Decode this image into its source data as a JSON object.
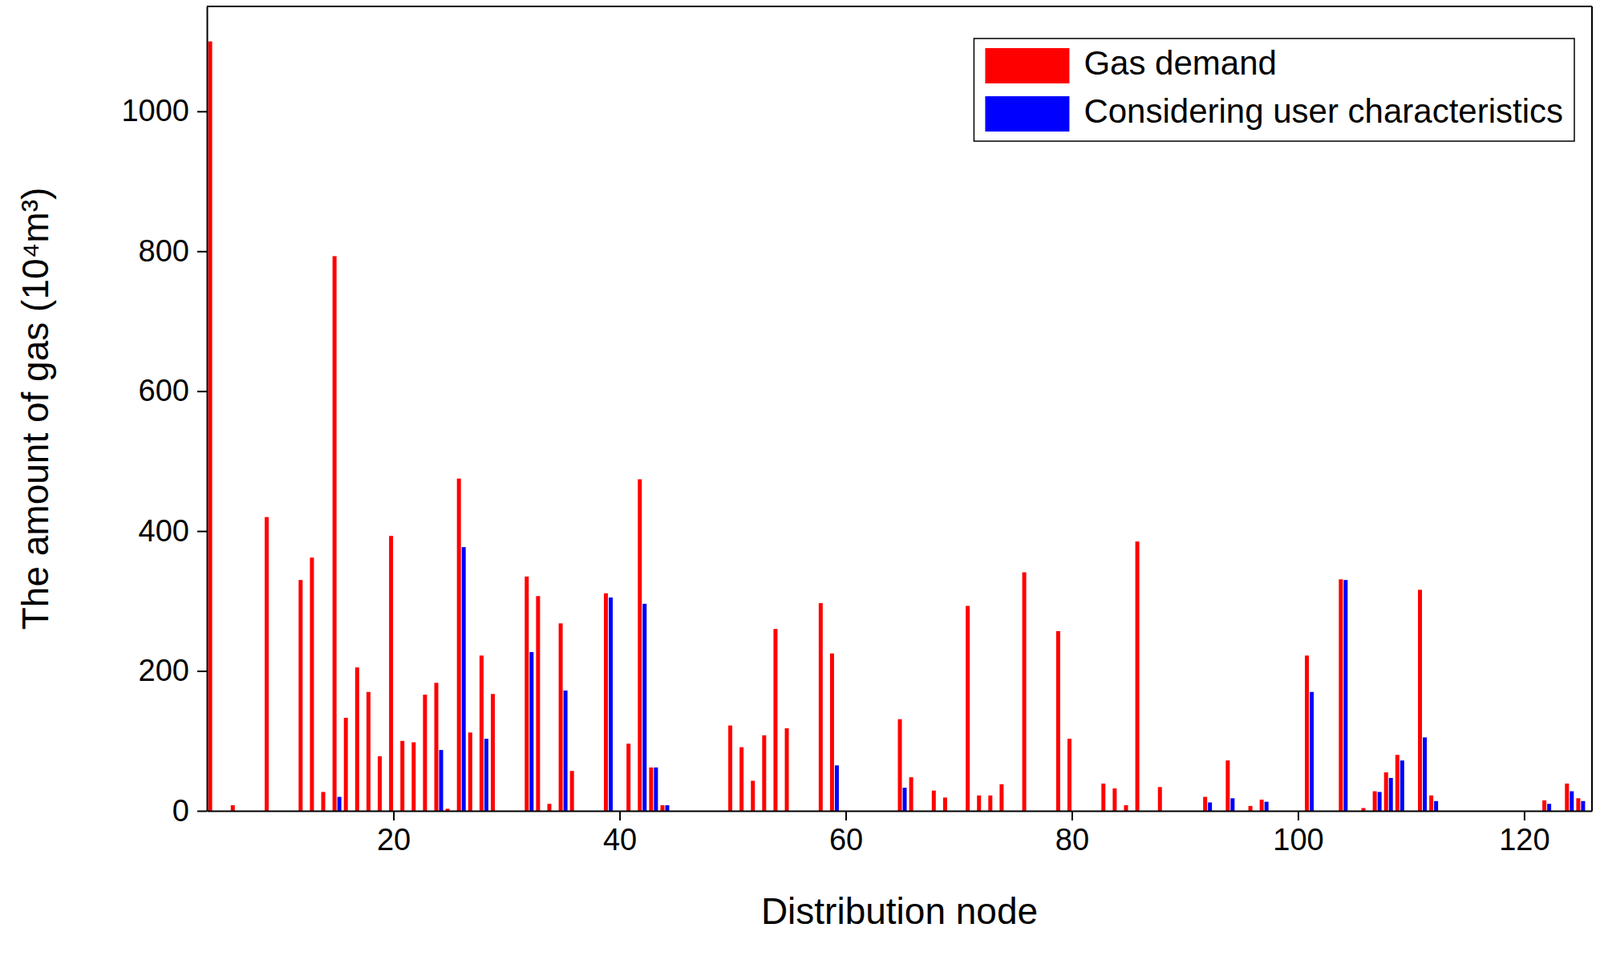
{
  "chart_data": {
    "type": "bar",
    "x_label": "Distribution node",
    "y_label": "The amount of gas (10⁴m³)",
    "x": [
      4,
      6,
      9,
      12,
      13,
      14,
      15,
      16,
      17,
      18,
      19,
      20,
      21,
      22,
      23,
      24,
      25,
      26,
      27,
      28,
      29,
      32,
      33,
      34,
      35,
      36,
      39,
      41,
      42,
      43,
      44,
      50,
      51,
      52,
      53,
      54,
      55,
      58,
      59,
      65,
      66,
      68,
      69,
      71,
      72,
      73,
      74,
      76,
      79,
      80,
      83,
      84,
      85,
      86,
      88,
      92,
      94,
      96,
      97,
      101,
      104,
      106,
      107,
      108,
      109,
      111,
      112,
      122,
      124,
      125
    ],
    "series": [
      {
        "name": "Gas demand",
        "color": "#ff0000",
        "values": [
          1100,
          8,
          420,
          330,
          362,
          27,
          793,
          133,
          205,
          170,
          78,
          393,
          100,
          98,
          166,
          183,
          3,
          475,
          112,
          222,
          167,
          335,
          307,
          10,
          268,
          57,
          311,
          96,
          474,
          62,
          8,
          122,
          91,
          43,
          108,
          260,
          118,
          297,
          225,
          131,
          48,
          29,
          19,
          293,
          22,
          22,
          38,
          341,
          257,
          103,
          39,
          32,
          8,
          385,
          34,
          20,
          72,
          7,
          16,
          222,
          331,
          4,
          28,
          55,
          80,
          316,
          22,
          15,
          39,
          18
        ]
      },
      {
        "name": "Considering user characteristics",
        "color": "#0000ff",
        "values": [
          null,
          null,
          null,
          null,
          null,
          null,
          20,
          null,
          null,
          null,
          null,
          null,
          null,
          null,
          null,
          87,
          null,
          377,
          null,
          103,
          null,
          227,
          null,
          null,
          172,
          null,
          305,
          null,
          296,
          62,
          8,
          null,
          null,
          null,
          null,
          null,
          null,
          null,
          65,
          33,
          null,
          null,
          null,
          null,
          null,
          null,
          null,
          null,
          null,
          null,
          null,
          null,
          null,
          null,
          null,
          12,
          18,
          null,
          13,
          170,
          330,
          null,
          27,
          47,
          72,
          105,
          14,
          10,
          28,
          14
        ]
      }
    ],
    "xlim": [
      3.5,
      126
    ],
    "xticks": [
      20,
      40,
      60,
      80,
      100,
      120
    ],
    "ylim": [
      0,
      1150
    ],
    "yticks": [
      0,
      200,
      400,
      600,
      800,
      1000
    ],
    "legend": "upper right",
    "grid": false
  }
}
